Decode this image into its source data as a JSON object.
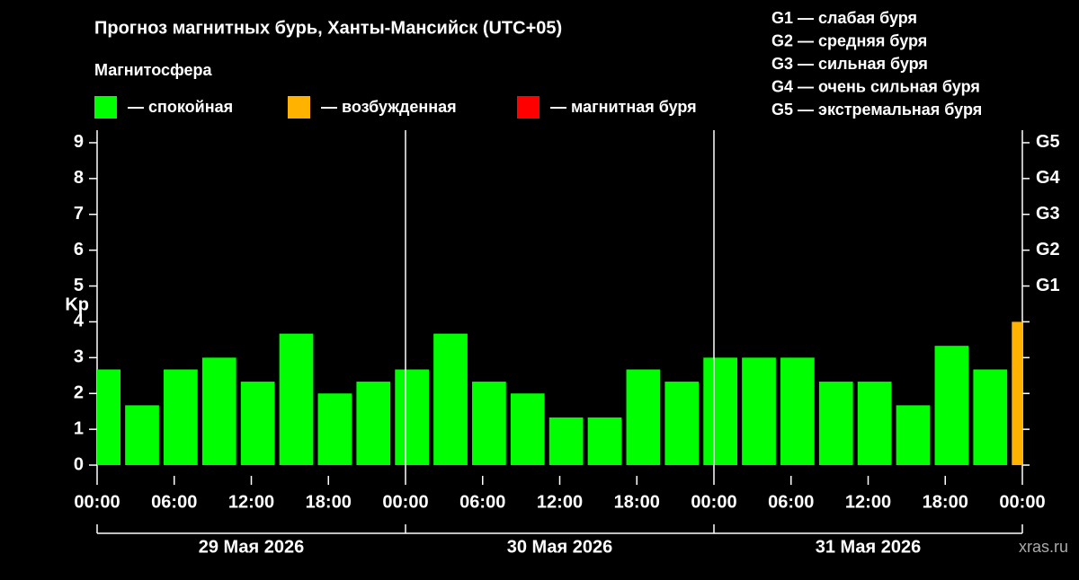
{
  "chart_data": {
    "type": "bar",
    "title": "Прогноз магнитных бурь, Ханты-Мансийск (UTC+05)",
    "legend_title": "Магнитосфера",
    "legend": [
      {
        "name": "— спокойная",
        "color": "#00ff00"
      },
      {
        "name": "— возбужденная",
        "color": "#ffb300"
      },
      {
        "name": "— магнитная буря",
        "color": "#ff0000"
      }
    ],
    "storm_scale": [
      "G1 — слабая буря",
      "G2 — средняя буря",
      "G3 — сильная буря",
      "G4 — очень сильная буря",
      "G5 — экстремальная буря"
    ],
    "y_label": "Kp",
    "x": [
      0.5,
      3.5,
      6.5,
      9.5,
      12.5,
      15.5,
      18.5,
      21.5,
      24.5,
      27.5,
      30.5,
      33.5,
      36.5,
      39.5,
      42.5,
      45.5,
      48.5,
      51.5,
      54.5,
      57.5,
      60.5,
      63.5,
      66.5,
      69.5,
      72.5
    ],
    "values": [
      2.67,
      1.67,
      2.67,
      3,
      2.33,
      3.67,
      2,
      2.33,
      2.67,
      3.67,
      2.33,
      2,
      1.33,
      1.33,
      2.67,
      2.33,
      3,
      3,
      3,
      2.33,
      2.33,
      1.67,
      3.33,
      2.67,
      4
    ],
    "colors": [
      "#00ff00",
      "#00ff00",
      "#00ff00",
      "#00ff00",
      "#00ff00",
      "#00ff00",
      "#00ff00",
      "#00ff00",
      "#00ff00",
      "#00ff00",
      "#00ff00",
      "#00ff00",
      "#00ff00",
      "#00ff00",
      "#00ff00",
      "#00ff00",
      "#00ff00",
      "#00ff00",
      "#00ff00",
      "#00ff00",
      "#00ff00",
      "#00ff00",
      "#00ff00",
      "#00ff00",
      "#ffb300"
    ],
    "xlim": [
      0,
      72
    ],
    "xticks": [
      {
        "value": 0,
        "label": "00:00"
      },
      {
        "value": 6,
        "label": "06:00"
      },
      {
        "value": 12,
        "label": "12:00"
      },
      {
        "value": 18,
        "label": "18:00"
      },
      {
        "value": 24,
        "label": "00:00"
      },
      {
        "value": 30,
        "label": "06:00"
      },
      {
        "value": 36,
        "label": "12:00"
      },
      {
        "value": 42,
        "label": "18:00"
      },
      {
        "value": 48,
        "label": "00:00"
      },
      {
        "value": 54,
        "label": "06:00"
      },
      {
        "value": 60,
        "label": "12:00"
      },
      {
        "value": 66,
        "label": "18:00"
      },
      {
        "value": 72,
        "label": "00:00"
      }
    ],
    "day_labels": [
      "29 Мая 2026",
      "30 Мая 2026",
      "31 Мая 2026"
    ],
    "ylim": [
      -0.3,
      9.35
    ],
    "yticks": [
      0,
      1,
      2,
      3,
      4,
      5,
      6,
      7,
      8,
      9
    ],
    "y2ticks": [
      {
        "value": 5,
        "label": "G1"
      },
      {
        "value": 6,
        "label": "G2"
      },
      {
        "value": 7,
        "label": "G3"
      },
      {
        "value": 8,
        "label": "G4"
      },
      {
        "value": 9,
        "label": "G5"
      }
    ],
    "watermark": "xras.ru"
  }
}
